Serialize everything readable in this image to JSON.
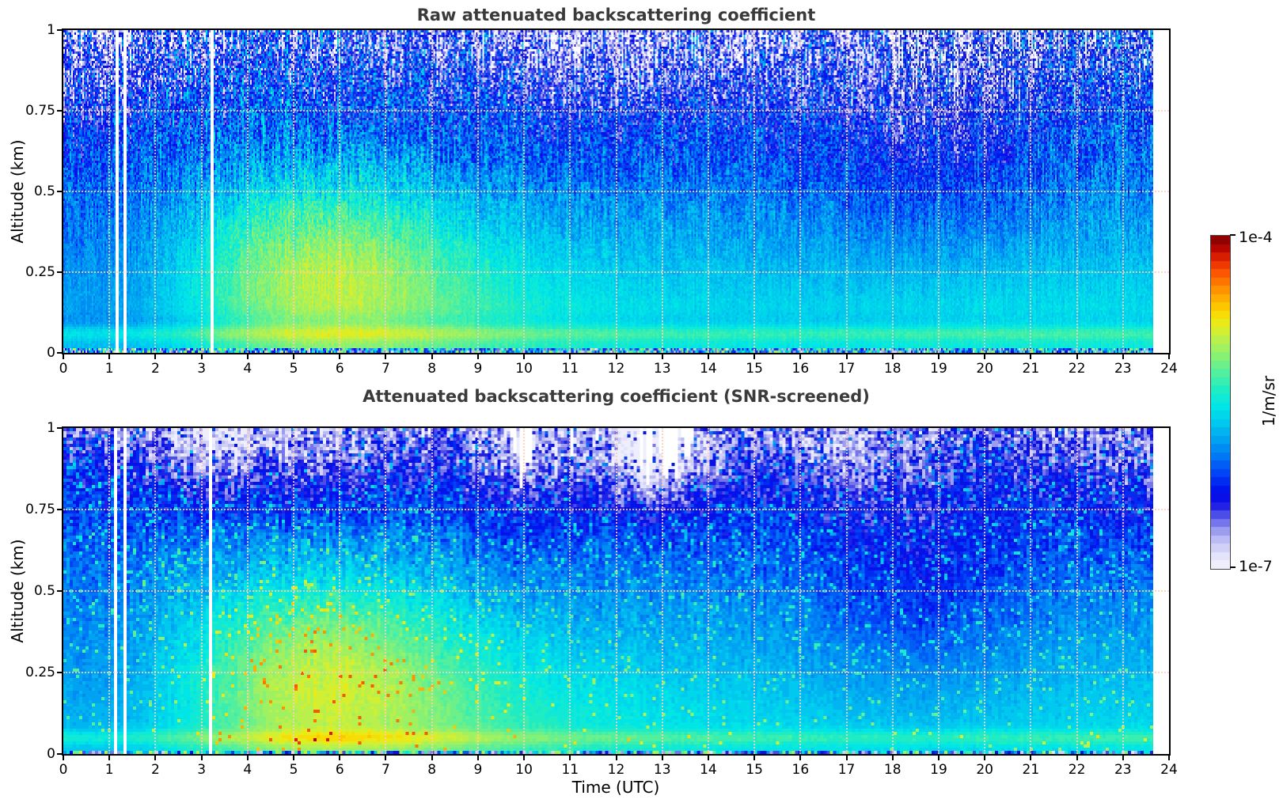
{
  "page": {
    "background": "#ffffff"
  },
  "panels": [
    {
      "title": "Raw attenuated backscattering coefficient",
      "ylabel": "Altitude (km)"
    },
    {
      "title": "Attenuated backscattering coefficient (SNR-screened)",
      "ylabel": "Altitude (km)"
    }
  ],
  "xlabel": "Time (UTC)",
  "x_ticks": {
    "values": [
      0,
      1,
      2,
      3,
      4,
      5,
      6,
      7,
      8,
      9,
      10,
      11,
      12,
      13,
      14,
      15,
      16,
      17,
      18,
      19,
      20,
      21,
      22,
      23,
      24
    ],
    "labels": [
      "0",
      "1",
      "2",
      "3",
      "4",
      "5",
      "6",
      "7",
      "8",
      "9",
      "10",
      "11",
      "12",
      "13",
      "14",
      "15",
      "16",
      "17",
      "18",
      "19",
      "20",
      "21",
      "22",
      "23",
      "24"
    ]
  },
  "y_ticks": {
    "values": [
      0,
      0.25,
      0.5,
      0.75,
      1
    ],
    "labels": [
      "0",
      "0.25",
      "0.5",
      "0.75",
      "1"
    ]
  },
  "grid": {
    "x_values": [
      1,
      2,
      3,
      4,
      5,
      6,
      7,
      8,
      9,
      10,
      11,
      12,
      13,
      14,
      15,
      16,
      17,
      18,
      19,
      20,
      21,
      22,
      23
    ],
    "y_values": [
      0.25,
      0.5,
      0.75
    ]
  },
  "colorbar": {
    "unit_label": "1/m/sr",
    "max_label": "1e-4",
    "min_label": "1e-7",
    "scale": "log",
    "vmin_exp": -7,
    "vmax_exp": -4,
    "levels": 40,
    "stops": [
      [
        0.0,
        "#f4f4fe"
      ],
      [
        0.04,
        "#e2e2fb"
      ],
      [
        0.08,
        "#c4c4f6"
      ],
      [
        0.12,
        "#9494ef"
      ],
      [
        0.16,
        "#5050e9"
      ],
      [
        0.2,
        "#0d0de4"
      ],
      [
        0.24,
        "#0014ee"
      ],
      [
        0.29,
        "#0046f5"
      ],
      [
        0.34,
        "#007af4"
      ],
      [
        0.39,
        "#00a4f1"
      ],
      [
        0.44,
        "#00caee"
      ],
      [
        0.49,
        "#00e6e6"
      ],
      [
        0.54,
        "#22ecc2"
      ],
      [
        0.59,
        "#55f09c"
      ],
      [
        0.64,
        "#8af174"
      ],
      [
        0.69,
        "#bcf04a"
      ],
      [
        0.73,
        "#e4ee1e"
      ],
      [
        0.77,
        "#fcd800"
      ],
      [
        0.81,
        "#ffb000"
      ],
      [
        0.85,
        "#ff8400"
      ],
      [
        0.89,
        "#fa5400"
      ],
      [
        0.93,
        "#e42400"
      ],
      [
        0.965,
        "#b20400"
      ],
      [
        1.0,
        "#7e0000"
      ]
    ]
  },
  "chart_data": {
    "type": "heatmap",
    "titles": [
      "Raw attenuated backscattering coefficient",
      "Attenuated backscattering coefficient (SNR-screened)"
    ],
    "xlabel": "Time (UTC)",
    "ylabel": "Altitude (km)",
    "x_range_hours": [
      0,
      24
    ],
    "y_range_km": [
      0,
      1
    ],
    "color_scale": {
      "type": "log",
      "vmin": 1e-07,
      "vmax": 0.0001,
      "unit": "1/m/sr",
      "colormap": "jet fading to white at minimum"
    },
    "data_coverage_hours": [
      0,
      23.65
    ],
    "gap_intervals_hours": [
      [
        1.12,
        1.19
      ],
      [
        1.31,
        1.38
      ],
      [
        3.18,
        3.26
      ]
    ],
    "grid_on": true,
    "features": [
      "Bright cyan-green boundary-layer plume from ~03:00 to ~09:00 UTC below 0.5 km, peak ~4e-6 1/m/sr near 05:30 at 0.2-0.4 km",
      "Background decreases with altitude from ~3e-6 near surface to ~4e-7 at 1 km",
      "Raw panel: strong speckle noise (deep blue and white masked pixels) above ~0.6 km",
      "Screened panel: smooth field with white SNR-masked gaps descending from top near 10:00, 11:00 and 12:30-13:40 UTC",
      "Dark blue (low signal) regions near 00:00-03:00 low level, 12:00-14:00 and 17:00-19:30 upper levels",
      "Thin enhanced aerosol layer near 0.05 km across the whole day",
      "Vertical white data gaps near 01:08, 01:20 and 03:13 UTC; record ends ~23:40 UTC"
    ],
    "render_params": {
      "panels": [
        {
          "grid": {
            "nx": 699,
            "nz": 136
          },
          "base": {
            "v0": -5.55,
            "slope": -0.75
          },
          "bumps": [
            {
              "t": 5.6,
              "z": 0.3,
              "st": 2.1,
              "sz": 0.2,
              "a": 0.62
            },
            {
              "t": 6.8,
              "z": 0.1,
              "st": 3.5,
              "sz": 0.22,
              "a": 0.28
            },
            {
              "t": 0.4,
              "z": 0.92,
              "st": 1.1,
              "sz": 0.22,
              "a": -0.3
            },
            {
              "t": 12.0,
              "z": 0.92,
              "st": 2.6,
              "sz": 0.22,
              "a": -0.25
            },
            {
              "t": 18.6,
              "z": 0.72,
              "st": 1.9,
              "sz": 0.3,
              "a": -0.28
            },
            {
              "t": 1.3,
              "z": 0.12,
              "st": 1.7,
              "sz": 0.28,
              "a": -0.3
            },
            {
              "t": 20.5,
              "z": 0.08,
              "st": 3.0,
              "sz": 0.2,
              "a": 0.1
            }
          ],
          "bands": [
            {
              "z": 0.06,
              "sz": 0.016,
              "a": 0.24
            },
            {
              "z": 0.1,
              "sz": 0.02,
              "a": -0.08
            },
            {
              "z": 1.0,
              "sz": 0.12,
              "a": -0.15
            }
          ],
          "noise": {
            "base": 0.1,
            "gain": 1.15,
            "pow": 1.8,
            "blk": 3
          },
          "mask_below": -7.02,
          "bottom_speckle_z": 0.013
        },
        {
          "grid": {
            "nx": 349,
            "nz": 103
          },
          "base": {
            "v0": -5.55,
            "slope": -0.72
          },
          "bumps": [
            {
              "t": 5.6,
              "z": 0.3,
              "st": 2.2,
              "sz": 0.22,
              "a": 0.65
            },
            {
              "t": 6.8,
              "z": 0.08,
              "st": 3.6,
              "sz": 0.22,
              "a": 0.3
            },
            {
              "t": 13.2,
              "z": 0.92,
              "st": 0.9,
              "sz": 0.16,
              "a": -0.45
            },
            {
              "t": 12.4,
              "z": 0.97,
              "st": 0.5,
              "sz": 0.14,
              "a": -0.35
            },
            {
              "t": 10.2,
              "z": 0.93,
              "st": 1.1,
              "sz": 0.2,
              "a": -0.35
            },
            {
              "t": 5.0,
              "z": 0.95,
              "st": 1.6,
              "sz": 0.16,
              "a": -0.3
            },
            {
              "t": 2.9,
              "z": 0.96,
              "st": 0.9,
              "sz": 0.14,
              "a": -0.25
            },
            {
              "t": 16.8,
              "z": 0.95,
              "st": 1.2,
              "sz": 0.15,
              "a": -0.25
            },
            {
              "t": 18.6,
              "z": 0.52,
              "st": 1.8,
              "sz": 0.28,
              "a": -0.3
            },
            {
              "t": 1.3,
              "z": 0.12,
              "st": 1.7,
              "sz": 0.28,
              "a": -0.28
            },
            {
              "t": 23.2,
              "z": 0.9,
              "st": 1.2,
              "sz": 0.25,
              "a": -0.2
            }
          ],
          "bands": [
            {
              "z": 0.05,
              "sz": 0.016,
              "a": 0.28
            },
            {
              "z": 1.0,
              "sz": 0.12,
              "a": -0.22
            }
          ],
          "noise": {
            "base": 0.07,
            "gain": 0.5,
            "pow": 1.5,
            "blk": 2
          },
          "speckle": {
            "base": 0.015,
            "zgain": 0.1,
            "amp": 0.55
          },
          "mask_below": -7.5,
          "icicles": [
            {
              "t": 9.95,
              "w": 0.45,
              "depth": 0.26
            },
            {
              "t": 11.0,
              "w": 0.2,
              "depth": 0.16
            },
            {
              "t": 12.65,
              "w": 0.28,
              "depth": 0.2
            },
            {
              "t": 13.15,
              "w": 0.5,
              "depth": 0.26
            },
            {
              "t": 13.55,
              "w": 0.22,
              "depth": 0.13
            },
            {
              "t": 7.9,
              "w": 0.1,
              "depth": 0.06
            },
            {
              "t": 11.6,
              "w": 0.1,
              "depth": 0.05
            }
          ],
          "bottom_speckle_z": 0.013
        }
      ]
    }
  }
}
